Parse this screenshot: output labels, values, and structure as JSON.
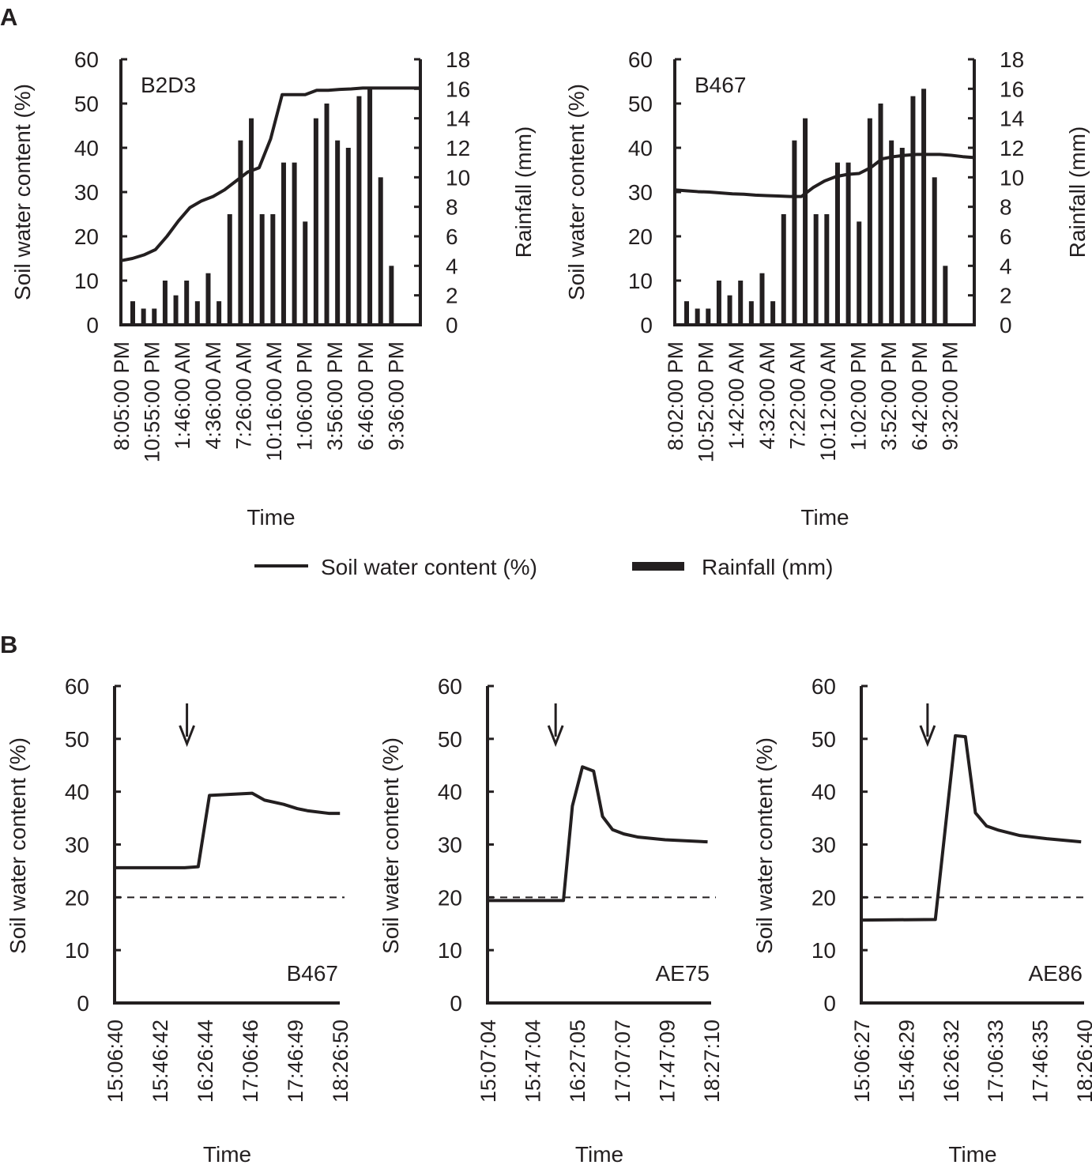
{
  "panel_labels": {
    "a": "A",
    "b": "B"
  },
  "legend": {
    "line_label": "Soil water content (%)",
    "bar_label": "Rainfall (mm)"
  },
  "chart_data": [
    {
      "type": "bar+line",
      "panel": "A",
      "title": "B2D3",
      "xlabel": "Time",
      "ylabel": "Soil water content (%)",
      "y2label": "Rainfall (mm)",
      "ylim": [
        0,
        60
      ],
      "yticks": [
        0,
        10,
        20,
        30,
        40,
        50,
        60
      ],
      "y2lim": [
        0,
        18
      ],
      "y2ticks": [
        0,
        2,
        4,
        6,
        8,
        10,
        12,
        14,
        16,
        18
      ],
      "xtick_labels": [
        "8:05:00 PM",
        "10:55:00 PM",
        "1:46:00 AM",
        "4:36:00 AM",
        "7:26:00 AM",
        "10:16:00 AM",
        "1:06:00 PM",
        "3:56:00 PM",
        "6:46:00 PM",
        "9:36:00 PM"
      ],
      "rainfall": [
        1.6,
        1.1,
        1.1,
        3,
        2,
        3,
        1.6,
        3.5,
        1.6,
        7.5,
        12.5,
        14,
        7.5,
        7.5,
        11,
        11,
        7,
        14,
        15,
        12.5,
        12,
        15.5,
        16,
        10,
        4
      ],
      "soil_water": [
        14.5,
        15,
        15.8,
        17,
        20,
        23.5,
        26.5,
        28,
        29,
        30.5,
        32.5,
        34.5,
        35.5,
        42,
        52,
        52,
        52,
        53,
        53,
        53.2,
        53.3,
        53.5,
        53.5,
        53.5,
        53.5,
        53.5,
        53.5
      ],
      "grid": false
    },
    {
      "type": "bar+line",
      "panel": "A",
      "title": "B467",
      "xlabel": "Time",
      "ylabel": "Soil water content (%)",
      "y2label": "Rainfall (mm)",
      "ylim": [
        0,
        60
      ],
      "yticks": [
        0,
        10,
        20,
        30,
        40,
        50,
        60
      ],
      "y2lim": [
        0,
        18
      ],
      "y2ticks": [
        0,
        2,
        4,
        6,
        8,
        10,
        12,
        14,
        16,
        18
      ],
      "xtick_labels": [
        "8:02:00 PM",
        "10:52:00 PM",
        "1:42:00 AM",
        "4:32:00 AM",
        "7:22:00 AM",
        "10:12:00 AM",
        "1:02:00 PM",
        "3:52:00 PM",
        "6:42:00 PM",
        "9:32:00 PM"
      ],
      "rainfall": [
        1.6,
        1.1,
        1.1,
        3,
        2,
        3,
        1.6,
        3.5,
        1.6,
        7.5,
        12.5,
        14,
        7.5,
        7.5,
        11,
        11,
        7,
        14,
        15,
        12.5,
        12,
        15.5,
        16,
        10,
        4
      ],
      "soil_water": [
        30.5,
        30.3,
        30.1,
        30,
        29.8,
        29.6,
        29.5,
        29.3,
        29.2,
        29.1,
        29,
        29,
        31,
        32.5,
        33.5,
        34,
        34.2,
        35.5,
        37.5,
        38,
        38.3,
        38.5,
        38.5,
        38.5,
        38.3,
        38,
        37.8
      ],
      "grid": false
    },
    {
      "type": "line",
      "panel": "B",
      "title": "B467",
      "xlabel": "Time",
      "ylabel": "Soil water content (%)",
      "ylim": [
        0,
        60
      ],
      "yticks": [
        0,
        10,
        20,
        30,
        40,
        50,
        60
      ],
      "xlim": [
        "15:06:40",
        "18:26:50"
      ],
      "xtick_labels": [
        "15:06:40",
        "15:46:42",
        "16:26:44",
        "17:06:46",
        "17:46:49",
        "18:26:50"
      ],
      "threshold": 20,
      "arrow_time": "16:11",
      "points": [
        [
          "15:06",
          25.6
        ],
        [
          "16:09",
          25.6
        ],
        [
          "16:21",
          25.8
        ],
        [
          "16:31",
          39.3
        ],
        [
          "17:09",
          39.7
        ],
        [
          "17:20",
          38.4
        ],
        [
          "17:37",
          37.6
        ],
        [
          "17:49",
          36.8
        ],
        [
          "17:58",
          36.4
        ],
        [
          "18:17",
          35.9
        ],
        [
          "18:27",
          35.9
        ]
      ],
      "grid": false
    },
    {
      "type": "line",
      "panel": "B",
      "title": "AE75",
      "xlabel": "Time",
      "ylabel": "Soil water content (%)",
      "ylim": [
        0,
        60
      ],
      "yticks": [
        0,
        10,
        20,
        30,
        40,
        50,
        60
      ],
      "xlim": [
        "15:07:04",
        "18:27:10"
      ],
      "xtick_labels": [
        "15:07:04",
        "15:47:04",
        "16:27:05",
        "17:07:07",
        "17:47:09",
        "18:27:10"
      ],
      "threshold": 20,
      "arrow_time": "16:08",
      "points": [
        [
          "15:07",
          19.4
        ],
        [
          "16:15",
          19.4
        ],
        [
          "16:23",
          37.3
        ],
        [
          "16:32",
          44.7
        ],
        [
          "16:42",
          43.9
        ],
        [
          "16:50",
          35.3
        ],
        [
          "16:59",
          32.8
        ],
        [
          "17:09",
          32.0
        ],
        [
          "17:22",
          31.4
        ],
        [
          "17:46",
          30.9
        ],
        [
          "18:24",
          30.5
        ]
      ],
      "grid": false
    },
    {
      "type": "line",
      "panel": "B",
      "title": "AE86",
      "xlabel": "Time",
      "ylabel": "Soil water content (%)",
      "ylim": [
        0,
        60
      ],
      "yticks": [
        0,
        10,
        20,
        30,
        40,
        50,
        60
      ],
      "xlim": [
        "15:06:27",
        "18:26:40"
      ],
      "xtick_labels": [
        "15:06:27",
        "15:46:29",
        "16:26:32",
        "17:06:33",
        "17:46:35",
        "18:26:40"
      ],
      "threshold": 20,
      "arrow_time": "16:06",
      "points": [
        [
          "15:06",
          15.7
        ],
        [
          "16:13",
          15.8
        ],
        [
          "16:31",
          50.6
        ],
        [
          "16:40",
          50.4
        ],
        [
          "16:49",
          36.0
        ],
        [
          "16:59",
          33.5
        ],
        [
          "17:10",
          32.7
        ],
        [
          "17:29",
          31.7
        ],
        [
          "17:53",
          31.1
        ],
        [
          "18:24",
          30.5
        ]
      ],
      "grid": false
    }
  ]
}
